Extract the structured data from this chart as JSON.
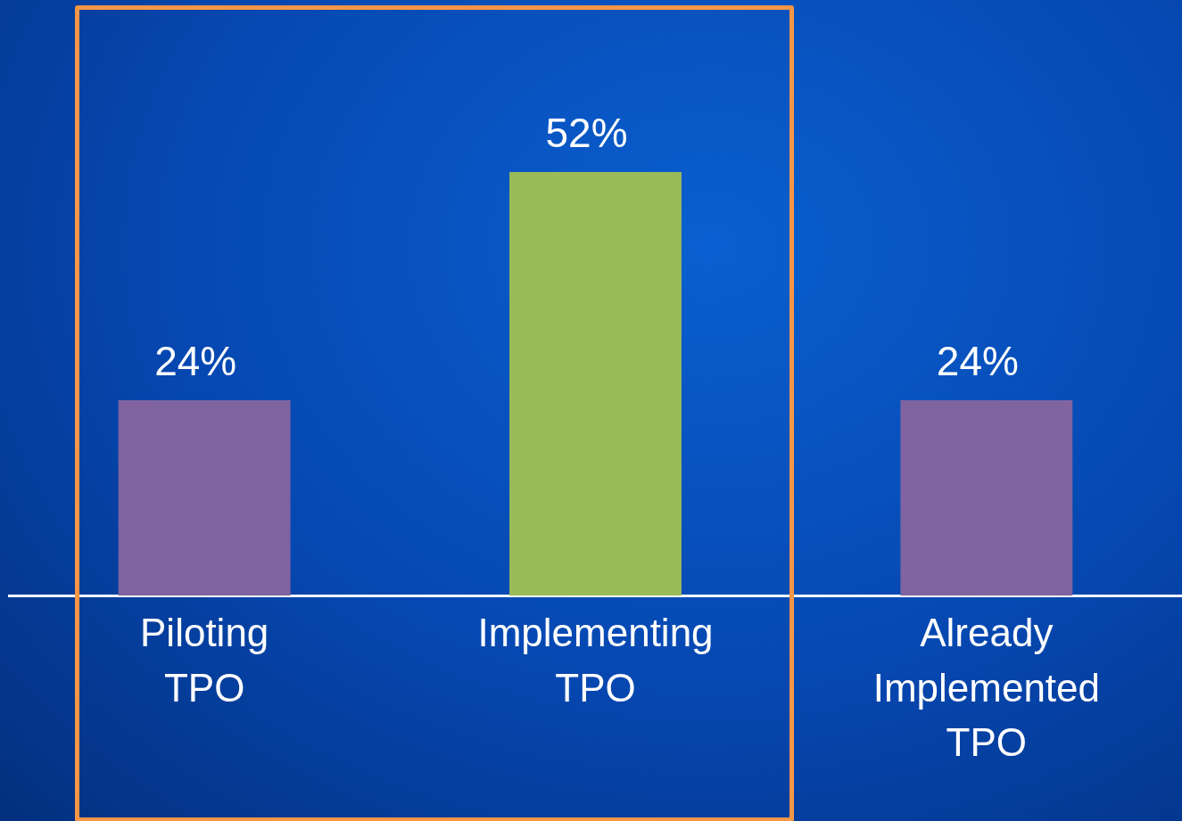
{
  "chart_data": {
    "type": "bar",
    "categories": [
      "Piloting\nTPO",
      "Implementing\nTPO",
      "Already\nImplemented\nTPO"
    ],
    "values": [
      24,
      52,
      24
    ],
    "colors": [
      "#8064a2",
      "#9bbb59",
      "#8064a2"
    ],
    "value_labels": [
      "24%",
      "52%",
      "24%"
    ],
    "grid": false,
    "legend": false
  }
}
